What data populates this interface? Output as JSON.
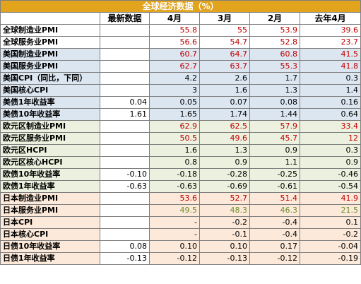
{
  "title": "全球经济数据（%）",
  "headers": [
    "",
    "最新数据",
    "4月",
    "3月",
    "2月",
    "去年4月"
  ],
  "colors": {
    "title_bg": "#e1a41c",
    "blue_group": "#dce6f1",
    "green_group": "#ebf1de",
    "pink_group": "#fde9d9",
    "red_text": "#c00000",
    "green_text": "#6e8f2c"
  },
  "rows": [
    {
      "label": "全球制造业PMI",
      "group": "white",
      "color": "red",
      "latest": "",
      "apr": "55.8",
      "mar": "55",
      "feb": "53.9",
      "lastyear": "39.6"
    },
    {
      "label": "全球服务业PMI",
      "group": "white",
      "color": "red",
      "latest": "",
      "apr": "56.6",
      "mar": "54.7",
      "feb": "52.8",
      "lastyear": "23.7"
    },
    {
      "label": "美国制造业PMI",
      "group": "blue",
      "color": "red",
      "latest": "",
      "apr": "60.7",
      "mar": "64.7",
      "feb": "60.8",
      "lastyear": "41.5"
    },
    {
      "label": "美国服务业PMI",
      "group": "blue",
      "color": "red",
      "latest": "",
      "apr": "62.7",
      "mar": "63.7",
      "feb": "55.3",
      "lastyear": "41.8"
    },
    {
      "label": "美国CPI（同比，下同）",
      "group": "blue",
      "color": "black",
      "latest": "",
      "apr": "4.2",
      "mar": "2.6",
      "feb": "1.7",
      "lastyear": "0.3"
    },
    {
      "label": "美国核心CPI",
      "group": "blue",
      "color": "black",
      "latest": "",
      "apr": "3",
      "mar": "1.6",
      "feb": "1.3",
      "lastyear": "1.4"
    },
    {
      "label": "美债1年收益率",
      "group": "blue",
      "color": "black",
      "latest": "0.04",
      "apr": "0.05",
      "mar": "0.07",
      "feb": "0.08",
      "lastyear": "0.16"
    },
    {
      "label": "美债10年收益率",
      "group": "blue",
      "color": "black",
      "latest": "1.61",
      "apr": "1.65",
      "mar": "1.74",
      "feb": "1.44",
      "lastyear": "0.64"
    },
    {
      "label": "欧元区制造业PMI",
      "group": "green",
      "color": "red",
      "latest": "",
      "apr": "62.9",
      "mar": "62.5",
      "feb": "57.9",
      "lastyear": "33.4"
    },
    {
      "label": "欧元区服务业PMI",
      "group": "green",
      "color": "red",
      "latest": "",
      "apr": "50.5",
      "mar": "49.6",
      "feb": "45.7",
      "lastyear": "12"
    },
    {
      "label": "欧元区HCPI",
      "group": "green",
      "color": "black",
      "latest": "",
      "apr": "1.6",
      "mar": "1.3",
      "feb": "0.9",
      "lastyear": "0.3"
    },
    {
      "label": "欧元区核心HCPI",
      "group": "green",
      "color": "black",
      "latest": "",
      "apr": "0.8",
      "mar": "0.9",
      "feb": "1.1",
      "lastyear": "0.9"
    },
    {
      "label": "欧债10年收益率",
      "group": "green",
      "color": "black",
      "latest": "-0.10",
      "apr": "-0.18",
      "mar": "-0.28",
      "feb": "-0.25",
      "lastyear": "-0.46"
    },
    {
      "label": "欧债1年收益率",
      "group": "green",
      "color": "black",
      "latest": "-0.63",
      "apr": "-0.63",
      "mar": "-0.69",
      "feb": "-0.61",
      "lastyear": "-0.54"
    },
    {
      "label": "日本制造业PMI",
      "group": "pink",
      "color": "red",
      "latest": "",
      "apr": "53.6",
      "mar": "52.7",
      "feb": "51.4",
      "lastyear": "41.9"
    },
    {
      "label": "日本服务业PMI",
      "group": "pink",
      "color": "green",
      "latest": "",
      "apr": "49.5",
      "mar": "48.3",
      "feb": "46.3",
      "lastyear": "21.5"
    },
    {
      "label": "日本CPI",
      "group": "pink",
      "color": "black",
      "latest": "",
      "apr": "-",
      "mar": "-0.2",
      "feb": "-0.4",
      "lastyear": "0.1"
    },
    {
      "label": "日本核心CPI",
      "group": "pink",
      "color": "black",
      "latest": "",
      "apr": "-",
      "mar": "-0.1",
      "feb": "-0.4",
      "lastyear": "-0.2"
    },
    {
      "label": "日债10年收益率",
      "group": "pink",
      "color": "black",
      "latest": "0.08",
      "apr": "0.10",
      "mar": "0.10",
      "feb": "0.17",
      "lastyear": "-0.04"
    },
    {
      "label": "日债1年收益率",
      "group": "pink",
      "color": "black",
      "latest": "-0.13",
      "apr": "-0.12",
      "mar": "-0.13",
      "feb": "-0.12",
      "lastyear": "-0.19"
    }
  ]
}
